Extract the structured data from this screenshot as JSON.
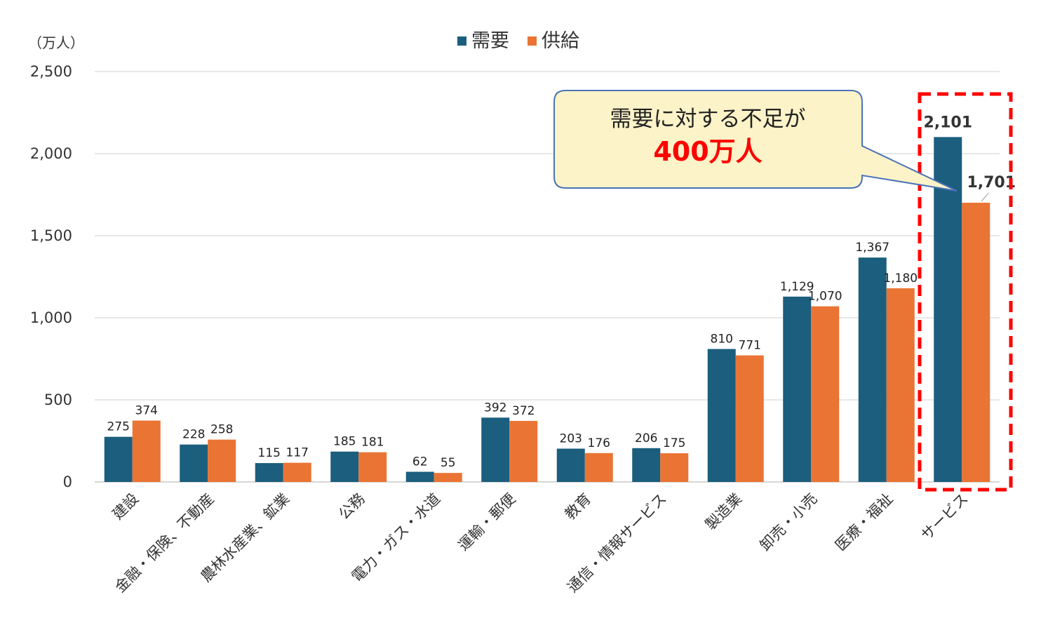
{
  "unit_label": "（万人）",
  "callout": {
    "line1": "需要に対する不足が",
    "line2": "400万人"
  },
  "colors": {
    "demand": "#1b5e7e",
    "supply": "#ea7434",
    "highlight": "#ff0000",
    "callout_fill": "#fdf3c8",
    "callout_stroke": "#4a72b8",
    "grid": "#d9d9d9"
  },
  "chart_data": {
    "type": "bar",
    "categories": [
      "建設",
      "金融・保険、不動産",
      "農林水産業、鉱業",
      "公務",
      "電力・ガス・水道",
      "運輸・郵便",
      "教育",
      "通信・情報サービス",
      "製造業",
      "卸売・小売",
      "医療・福祉",
      "サービス"
    ],
    "series": [
      {
        "name": "需要",
        "values": [
          275,
          228,
          115,
          185,
          62,
          392,
          203,
          206,
          810,
          1129,
          1367,
          2101
        ]
      },
      {
        "name": "供給",
        "values": [
          374,
          258,
          117,
          181,
          55,
          372,
          176,
          175,
          771,
          1070,
          1180,
          1701
        ]
      }
    ],
    "value_labels": [
      [
        "275",
        "228",
        "115",
        "185",
        "62",
        "392",
        "203",
        "206",
        "810",
        "1,129",
        "1,367",
        "2,101"
      ],
      [
        "374",
        "258",
        "117",
        "181",
        "55",
        "372",
        "176",
        "175",
        "771",
        "1,070",
        "1,180",
        "1,701"
      ]
    ],
    "yticks": [
      "0",
      "500",
      "1,000",
      "1,500",
      "2,000",
      "2,500"
    ],
    "ylim": [
      0,
      2500
    ],
    "grid": true,
    "legend_position": "top-center",
    "highlight_category": "サービス"
  }
}
